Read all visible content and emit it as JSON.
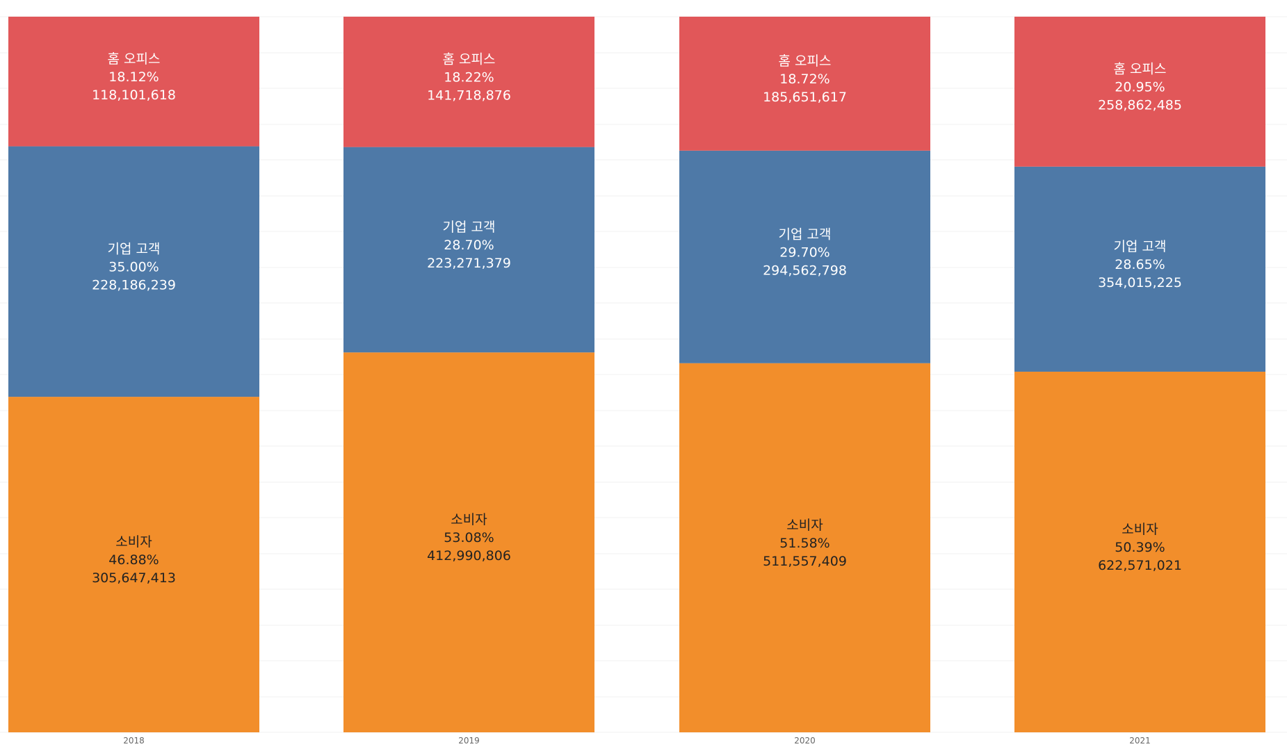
{
  "chart_data": {
    "type": "bar",
    "stacked": true,
    "normalized": true,
    "categories": [
      "2018",
      "2019",
      "2020",
      "2021"
    ],
    "series": [
      {
        "name": "소비자",
        "color": "#f28e2b",
        "label_color": "#222222",
        "percents": [
          "46.88%",
          "53.08%",
          "51.58%",
          "50.39%"
        ],
        "values": [
          305647413,
          412990806,
          511557409,
          622571021
        ],
        "value_labels": [
          "305,647,413",
          "412,990,806",
          "511,557,409",
          "622,571,021"
        ]
      },
      {
        "name": "기업 고객",
        "color": "#4e79a7",
        "label_color": "#ffffff",
        "percents": [
          "35.00%",
          "28.70%",
          "29.70%",
          "28.65%"
        ],
        "values": [
          228186239,
          223271379,
          294562798,
          354015225
        ],
        "value_labels": [
          "228,186,239",
          "223,271,379",
          "294,562,798",
          "354,015,225"
        ]
      },
      {
        "name": "홈 오피스",
        "color": "#e15759",
        "label_color": "#ffffff",
        "percents": [
          "18.12%",
          "18.22%",
          "18.72%",
          "20.95%"
        ],
        "values": [
          118101618,
          141718876,
          185651617,
          258862485
        ],
        "value_labels": [
          "118,101,618",
          "141,718,876",
          "185,651,617",
          "258,862,485"
        ]
      }
    ],
    "ylim": [
      0,
      1
    ],
    "grid": true,
    "legend": "none"
  }
}
